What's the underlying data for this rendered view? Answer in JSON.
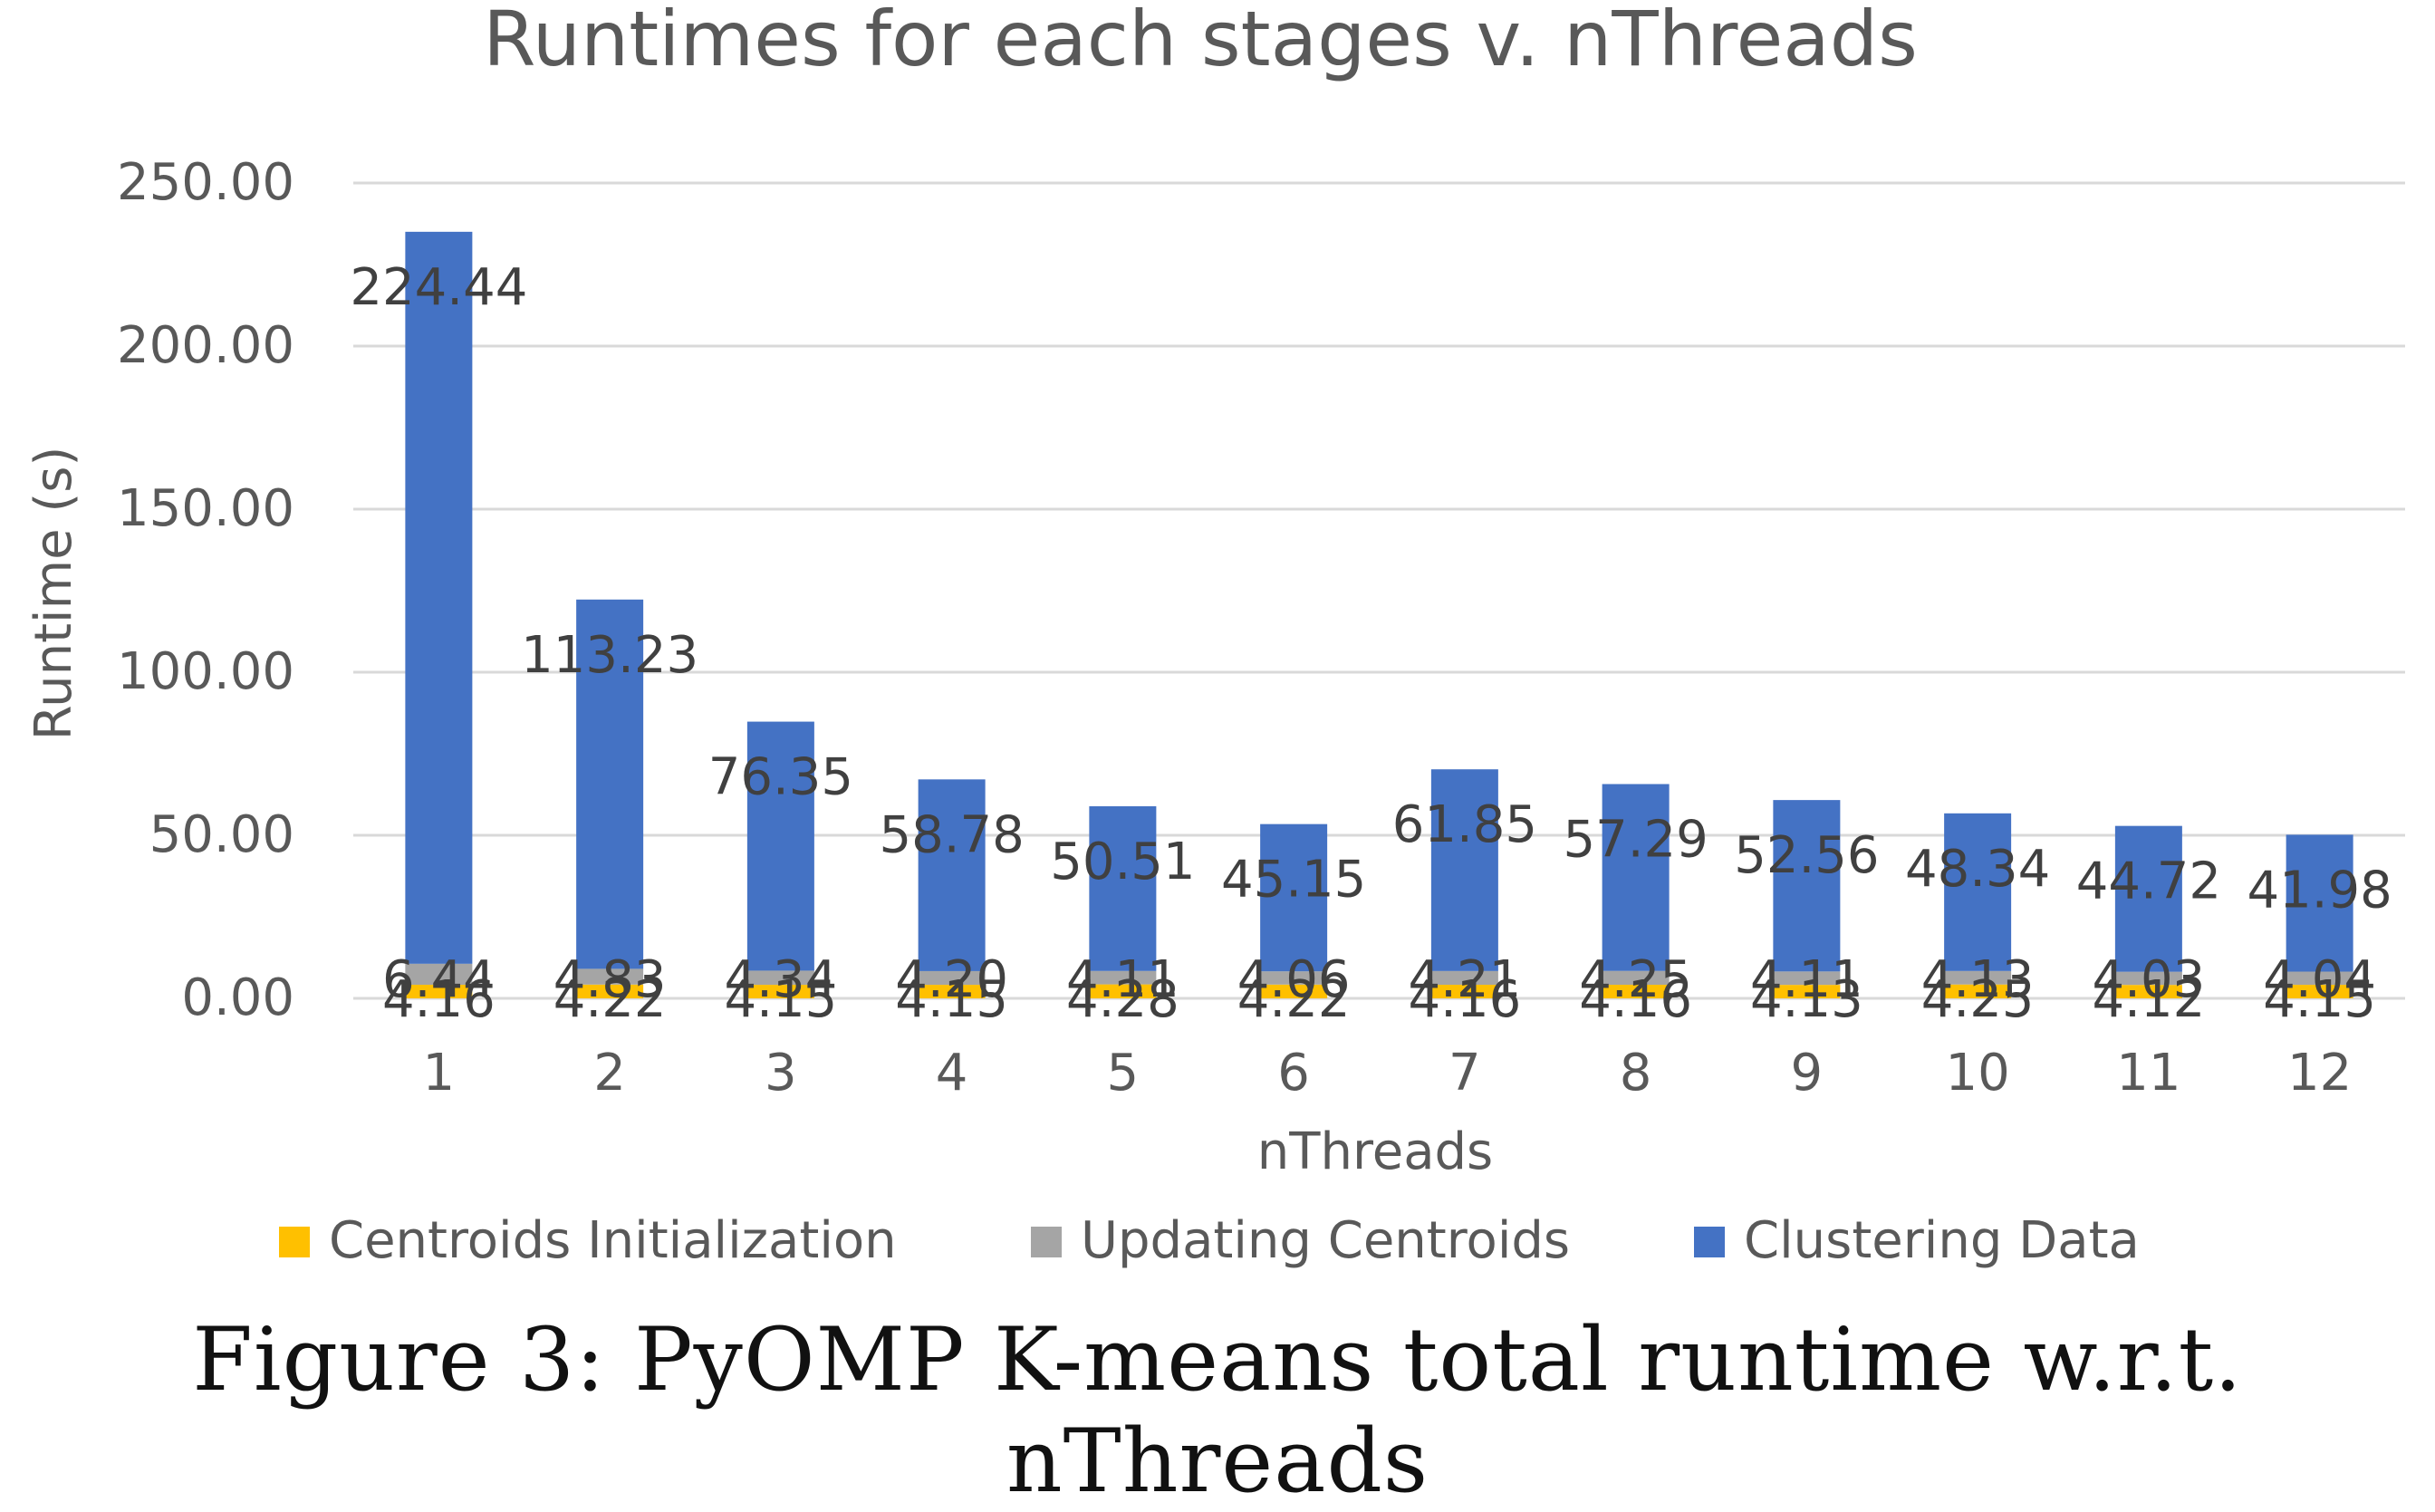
{
  "chart_data": {
    "type": "bar",
    "stacked": true,
    "title": "Runtimes for each stages v. nThreads",
    "xlabel": "nThreads",
    "ylabel": "Runtime (s)",
    "ylim": [
      0,
      250
    ],
    "yticks": [
      "0.00",
      "50.00",
      "100.00",
      "150.00",
      "200.00",
      "250.00"
    ],
    "grid": true,
    "legend_position": "bottom",
    "categories": [
      "1",
      "2",
      "3",
      "4",
      "5",
      "6",
      "7",
      "8",
      "9",
      "10",
      "11",
      "12"
    ],
    "series": [
      {
        "name": "Centroids Initialization",
        "color": "#FFC000",
        "values": [
          4.16,
          4.22,
          4.15,
          4.15,
          4.28,
          4.22,
          4.16,
          4.16,
          4.13,
          4.25,
          4.12,
          4.15
        ],
        "labels": [
          "4.16",
          "4.22",
          "4.15",
          "4.15",
          "4.28",
          "4.22",
          "4.16",
          "4.16",
          "4.13",
          "4.25",
          "4.12",
          "4.15"
        ]
      },
      {
        "name": "Updating Centroids",
        "color": "#A5A5A5",
        "values": [
          6.44,
          4.83,
          4.34,
          4.2,
          4.11,
          4.06,
          4.21,
          4.25,
          4.11,
          4.13,
          4.03,
          4.04
        ],
        "labels": [
          "6.44",
          "4.83",
          "4.34",
          "4.20",
          "4.11",
          "4.06",
          "4.21",
          "4.25",
          "4.11",
          "4.13",
          "4.03",
          "4.04"
        ]
      },
      {
        "name": "Clustering Data",
        "color": "#4472C4",
        "values": [
          224.44,
          113.23,
          76.35,
          58.78,
          50.51,
          45.15,
          61.85,
          57.29,
          52.56,
          48.34,
          44.72,
          41.98
        ],
        "labels": [
          "224.44",
          "113.23",
          "76.35",
          "58.78",
          "50.51",
          "45.15",
          "61.85",
          "57.29",
          "52.56",
          "48.34",
          "44.72",
          "41.98"
        ]
      }
    ]
  },
  "caption": "Figure 3: PyOMP K-means total runtime w.r.t. nThreads"
}
